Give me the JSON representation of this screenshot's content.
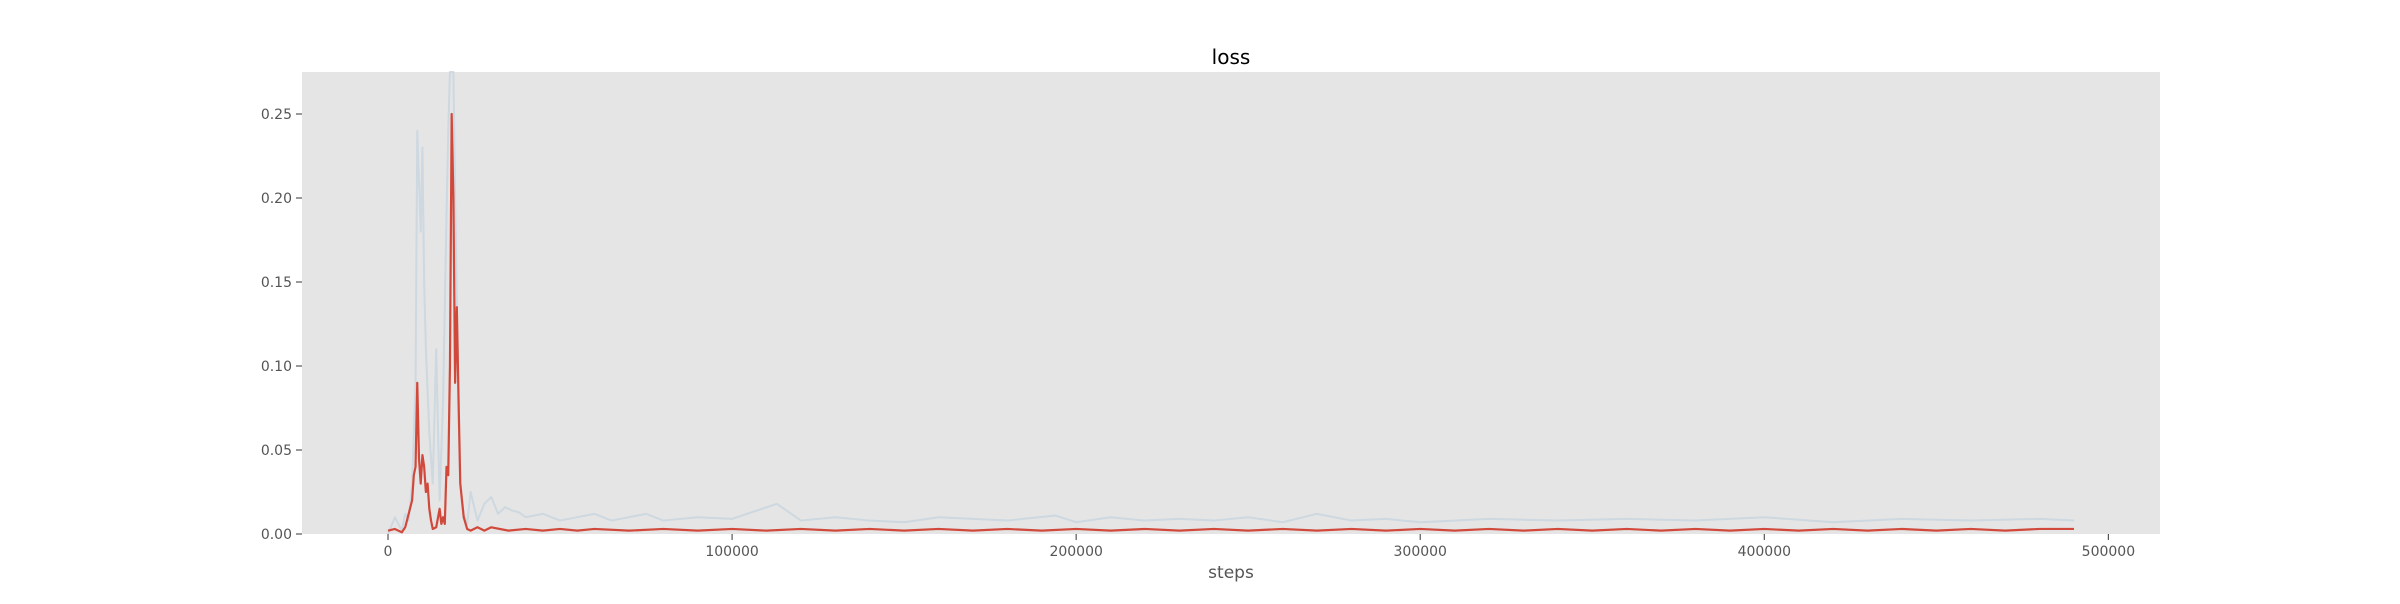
{
  "chart_data": {
    "type": "line",
    "title": "loss",
    "xlabel": "steps",
    "ylabel": "",
    "xlim": [
      -25000,
      515000
    ],
    "ylim": [
      0,
      0.275
    ],
    "x_ticks": [
      0,
      100000,
      200000,
      300000,
      400000,
      500000
    ],
    "x_tick_labels": [
      "0",
      "100000",
      "200000",
      "300000",
      "400000",
      "500000"
    ],
    "y_ticks": [
      0.0,
      0.05,
      0.1,
      0.15,
      0.2,
      0.25
    ],
    "y_tick_labels": [
      "0.00",
      "0.05",
      "0.10",
      "0.15",
      "0.20",
      "0.25"
    ],
    "grid": false,
    "background_color": "#e5e5e5",
    "series": [
      {
        "role": "raw",
        "color": "#c9d6df",
        "x": [
          0,
          2000,
          4000,
          5000,
          6000,
          7000,
          8000,
          8500,
          9000,
          9500,
          10000,
          10500,
          11000,
          12000,
          13000,
          14000,
          15000,
          16000,
          17000,
          17500,
          18000,
          18500,
          19000,
          19500,
          20000,
          20500,
          21000,
          22000,
          23000,
          24000,
          26000,
          28000,
          30000,
          32000,
          34000,
          36000,
          38000,
          40000,
          45000,
          50000,
          55000,
          60000,
          65000,
          70000,
          75000,
          80000,
          90000,
          100000,
          113000,
          120000,
          130000,
          140000,
          150000,
          160000,
          170000,
          180000,
          194000,
          200000,
          210000,
          220000,
          230000,
          240000,
          250000,
          260000,
          270000,
          280000,
          290000,
          300000,
          320000,
          340000,
          360000,
          380000,
          400000,
          420000,
          440000,
          460000,
          480000,
          490000
        ],
        "y": [
          0.0,
          0.01,
          0.002,
          0.012,
          0.008,
          0.03,
          0.09,
          0.24,
          0.21,
          0.18,
          0.23,
          0.15,
          0.11,
          0.06,
          0.03,
          0.11,
          0.02,
          0.08,
          0.19,
          0.24,
          0.275,
          0.275,
          0.275,
          0.2,
          0.14,
          0.07,
          0.03,
          0.012,
          0.006,
          0.025,
          0.008,
          0.018,
          0.022,
          0.012,
          0.016,
          0.014,
          0.013,
          0.01,
          0.012,
          0.008,
          0.01,
          0.012,
          0.008,
          0.01,
          0.012,
          0.008,
          0.01,
          0.009,
          0.018,
          0.008,
          0.01,
          0.008,
          0.007,
          0.01,
          0.009,
          0.008,
          0.011,
          0.007,
          0.01,
          0.008,
          0.009,
          0.008,
          0.01,
          0.007,
          0.012,
          0.008,
          0.009,
          0.007,
          0.009,
          0.008,
          0.009,
          0.008,
          0.01,
          0.007,
          0.009,
          0.008,
          0.009,
          0.008
        ]
      },
      {
        "role": "smoothed",
        "color": "#d1493b",
        "x": [
          0,
          2000,
          4000,
          5000,
          6000,
          7000,
          7500,
          8000,
          8500,
          9000,
          9500,
          10000,
          10500,
          11000,
          11500,
          12000,
          12500,
          13000,
          14000,
          15000,
          15500,
          16000,
          16500,
          17000,
          17500,
          18000,
          18500,
          19000,
          19500,
          20000,
          20500,
          21000,
          22000,
          23000,
          24000,
          26000,
          28000,
          30000,
          35000,
          40000,
          45000,
          50000,
          55000,
          60000,
          70000,
          80000,
          90000,
          100000,
          110000,
          120000,
          130000,
          140000,
          150000,
          160000,
          170000,
          180000,
          190000,
          200000,
          210000,
          220000,
          230000,
          240000,
          250000,
          260000,
          270000,
          280000,
          290000,
          300000,
          310000,
          320000,
          330000,
          340000,
          350000,
          360000,
          370000,
          380000,
          390000,
          400000,
          410000,
          420000,
          430000,
          440000,
          450000,
          460000,
          470000,
          480000,
          490000
        ],
        "y": [
          0.002,
          0.003,
          0.001,
          0.004,
          0.012,
          0.02,
          0.035,
          0.04,
          0.09,
          0.045,
          0.03,
          0.047,
          0.04,
          0.025,
          0.03,
          0.015,
          0.008,
          0.003,
          0.004,
          0.015,
          0.006,
          0.01,
          0.006,
          0.04,
          0.035,
          0.1,
          0.25,
          0.2,
          0.09,
          0.135,
          0.08,
          0.03,
          0.01,
          0.003,
          0.002,
          0.004,
          0.002,
          0.004,
          0.002,
          0.003,
          0.002,
          0.003,
          0.002,
          0.003,
          0.002,
          0.003,
          0.002,
          0.003,
          0.002,
          0.003,
          0.002,
          0.003,
          0.002,
          0.003,
          0.002,
          0.003,
          0.002,
          0.003,
          0.002,
          0.003,
          0.002,
          0.003,
          0.002,
          0.003,
          0.002,
          0.003,
          0.002,
          0.003,
          0.002,
          0.003,
          0.002,
          0.003,
          0.002,
          0.003,
          0.002,
          0.003,
          0.002,
          0.003,
          0.002,
          0.003,
          0.002,
          0.003,
          0.002,
          0.003,
          0.002,
          0.003,
          0.003
        ]
      }
    ]
  }
}
